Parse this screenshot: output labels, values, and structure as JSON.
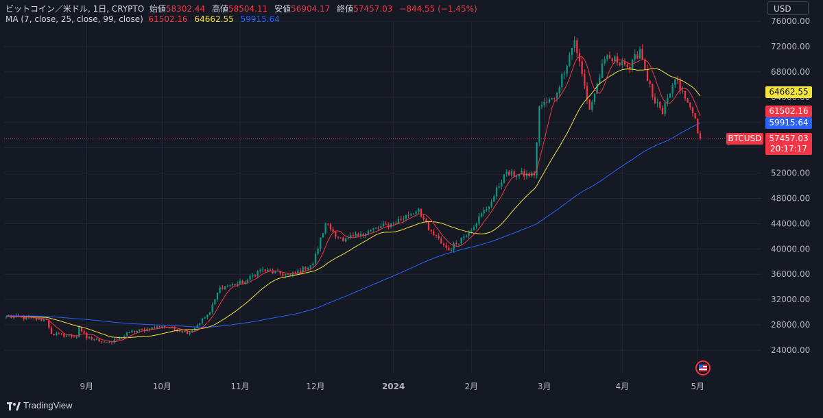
{
  "legend": {
    "symbol_line": "ビットコイン／米ドル, 1日, CRYPTO",
    "open_label": "始値",
    "open": "58302.44",
    "high_label": "高値",
    "high": "58504.11",
    "low_label": "安値",
    "low": "56904.17",
    "close_label": "終値",
    "close": "57457.03",
    "change": "−844.55 (−1.45%)",
    "ma_label": "MA (7, close, 25, close, 99, close)",
    "ma7": "61502.16",
    "ma25": "64662.55",
    "ma99": "59915.64"
  },
  "currency": "USD",
  "symbol": "BTCUSD",
  "price_tags": {
    "ma25": "64662.55",
    "ma7": "61502.16",
    "ma99": "59915.64",
    "last": "57457.03",
    "timer": "20:17:17"
  },
  "brand": "TradingView",
  "colors": {
    "up": "#089981",
    "down": "#f23645",
    "ma7": "#f23645",
    "ma25": "#f5e33b",
    "ma99": "#2962ff",
    "background": "#151924"
  },
  "chart_data": {
    "type": "candlestick",
    "symbol": "BTCUSD",
    "interval": "1日",
    "ylim": [
      22000,
      77000
    ],
    "y_ticks": [
      24000,
      28000,
      32000,
      36000,
      40000,
      44000,
      48000,
      52000,
      56000,
      60000,
      64000,
      68000,
      72000,
      76000
    ],
    "y_tick_labels": [
      "24000.00",
      "28000.00",
      "32000.00",
      "36000.00",
      "40000.00",
      "44000.00",
      "48000.00",
      "52000.00",
      "56000.00",
      "60000.00",
      "64000.00",
      "68000.00",
      "72000.00",
      "76000.00"
    ],
    "x_ticks": [
      "9月",
      "10月",
      "11月",
      "12月",
      "2024",
      "2月",
      "3月",
      "4月",
      "5月"
    ],
    "date_range": [
      "2023-07-31",
      "2024-05-02"
    ],
    "last_price": 57457.03,
    "close_anchors": [
      {
        "date": "2023-07-31",
        "close": 29300
      },
      {
        "date": "2023-08-16",
        "close": 28800
      },
      {
        "date": "2023-08-18",
        "close": 26600
      },
      {
        "date": "2023-08-28",
        "close": 26100
      },
      {
        "date": "2023-08-29",
        "close": 27700
      },
      {
        "date": "2023-09-01",
        "close": 25900
      },
      {
        "date": "2023-09-11",
        "close": 25200
      },
      {
        "date": "2023-09-18",
        "close": 26800
      },
      {
        "date": "2023-10-01",
        "close": 27800
      },
      {
        "date": "2023-10-12",
        "close": 26800
      },
      {
        "date": "2023-10-20",
        "close": 30000
      },
      {
        "date": "2023-10-24",
        "close": 33900
      },
      {
        "date": "2023-11-03",
        "close": 34800
      },
      {
        "date": "2023-11-09",
        "close": 36700
      },
      {
        "date": "2023-11-21",
        "close": 35800
      },
      {
        "date": "2023-11-30",
        "close": 37700
      },
      {
        "date": "2023-12-05",
        "close": 44000
      },
      {
        "date": "2023-12-12",
        "close": 41200
      },
      {
        "date": "2023-12-19",
        "close": 42400
      },
      {
        "date": "2024-01-01",
        "close": 44100
      },
      {
        "date": "2024-01-11",
        "close": 46300
      },
      {
        "date": "2024-01-15",
        "close": 43000
      },
      {
        "date": "2024-01-23",
        "close": 39800
      },
      {
        "date": "2024-01-31",
        "close": 42800
      },
      {
        "date": "2024-02-09",
        "close": 47500
      },
      {
        "date": "2024-02-14",
        "close": 51800
      },
      {
        "date": "2024-02-26",
        "close": 51700
      },
      {
        "date": "2024-02-28",
        "close": 62500
      },
      {
        "date": "2024-03-05",
        "close": 63800
      },
      {
        "date": "2024-03-13",
        "close": 73000
      },
      {
        "date": "2024-03-19",
        "close": 62000
      },
      {
        "date": "2024-03-25",
        "close": 70000
      },
      {
        "date": "2024-04-01",
        "close": 69700
      },
      {
        "date": "2024-04-04",
        "close": 68500
      },
      {
        "date": "2024-04-08",
        "close": 71600
      },
      {
        "date": "2024-04-13",
        "close": 64000
      },
      {
        "date": "2024-04-17",
        "close": 61300
      },
      {
        "date": "2024-04-22",
        "close": 66800
      },
      {
        "date": "2024-04-26",
        "close": 63800
      },
      {
        "date": "2024-04-30",
        "close": 60600
      },
      {
        "date": "2024-05-01",
        "close": 58300
      },
      {
        "date": "2024-05-02",
        "close": 57457
      }
    ]
  }
}
